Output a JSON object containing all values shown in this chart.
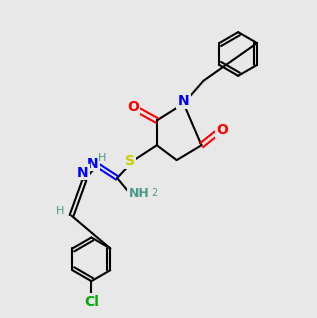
{
  "bg_color": "#e8e8e8",
  "bond_color": "#000000",
  "bond_width": 1.5,
  "atom_colors": {
    "N": "#0000FF",
    "O": "#FF0000",
    "S": "#CCCC00",
    "Cl": "#00AA00",
    "H": "#4a9a8a",
    "C": "#000000"
  },
  "font_size": 9,
  "label_font_size": 8
}
